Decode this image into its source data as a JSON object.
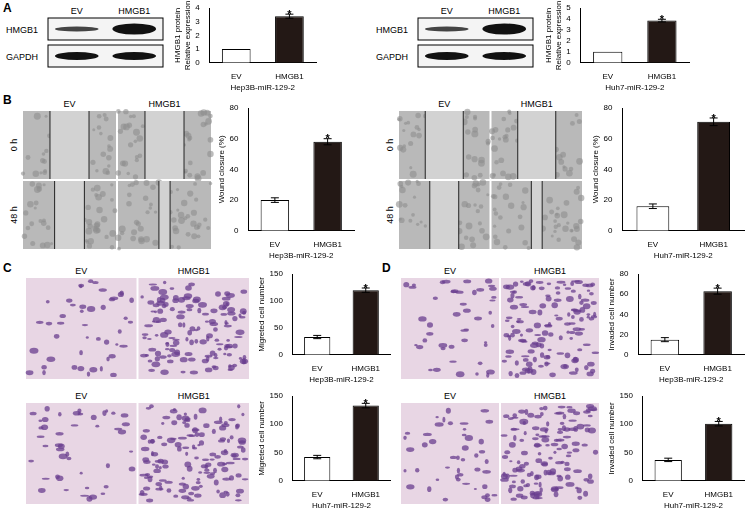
{
  "panels": [
    "A",
    "B",
    "C",
    "D"
  ],
  "blots": [
    {
      "columns": [
        "EV",
        "HMGB1"
      ],
      "rows": [
        "HMGB1",
        "GAPDH"
      ]
    },
    {
      "columns": [
        "EV",
        "HMGB1"
      ],
      "rows": [
        "HMGB1",
        "GAPDH"
      ]
    }
  ],
  "micrographs": [
    {
      "columns": [
        "EV",
        "HMGB1"
      ],
      "rows": [
        "0 h",
        "48 h"
      ]
    },
    {
      "columns": [
        "EV",
        "HMGB1"
      ],
      "rows": [
        "0 h",
        "48 h"
      ]
    },
    {
      "columns": [
        "EV",
        "HMGB1"
      ]
    },
    {
      "columns": [
        "EV",
        "HMGB1"
      ]
    },
    {
      "columns": [
        "EV",
        "HMGB1"
      ]
    },
    {
      "columns": [
        "EV",
        "HMGB1"
      ]
    }
  ],
  "chart_data": [
    {
      "type": "bar",
      "categories": [
        "EV",
        "HMGB1"
      ],
      "values": [
        1,
        3.4
      ],
      "errors": [
        0,
        0.15
      ],
      "colors": [
        "#ffffff",
        "#231815"
      ],
      "ylim": [
        0,
        4
      ],
      "yticks": [
        0,
        1,
        2,
        3,
        4
      ],
      "ylabel": [
        "HMGB1 protein",
        "Relative expression"
      ],
      "xlabel": "Hep3B-miR-129-2",
      "annotations": [
        {
          "category": "HMGB1",
          "text": "*"
        }
      ],
      "grid": false
    },
    {
      "type": "bar",
      "categories": [
        "EV",
        "HMGB1"
      ],
      "values": [
        1,
        3.85
      ],
      "errors": [
        0,
        0.12
      ],
      "colors": [
        "#ffffff",
        "#231815"
      ],
      "ylim": [
        0,
        5
      ],
      "yticks": [
        0,
        1,
        2,
        3,
        4,
        5
      ],
      "ylabel": [
        "HMGB1 protein",
        "Relative expression"
      ],
      "xlabel": "Huh7-miR-129-2",
      "annotations": [
        {
          "category": "HMGB1",
          "text": "*"
        }
      ],
      "grid": false
    },
    {
      "type": "bar",
      "categories": [
        "EV",
        "HMGB1"
      ],
      "values": [
        20,
        58
      ],
      "errors": [
        1.5,
        2
      ],
      "colors": [
        "#ffffff",
        "#231815"
      ],
      "ylim": [
        0,
        80
      ],
      "yticks": [
        0,
        20,
        40,
        60,
        80
      ],
      "ylabel": "Wound closure (%)",
      "xlabel": "Hep3B-miR-129-2",
      "annotations": [
        {
          "category": "HMGB1",
          "text": "*"
        }
      ],
      "grid": false
    },
    {
      "type": "bar",
      "categories": [
        "EV",
        "HMGB1"
      ],
      "values": [
        16,
        71
      ],
      "errors": [
        1.5,
        2.5
      ],
      "colors": [
        "#ffffff",
        "#231815"
      ],
      "ylim": [
        0,
        80
      ],
      "yticks": [
        0,
        20,
        40,
        60,
        80
      ],
      "ylabel": "Wound closure (%)",
      "xlabel": "Huh7-miR-129-2",
      "annotations": [
        {
          "category": "HMGB1",
          "text": "*"
        }
      ],
      "grid": false
    },
    {
      "type": "bar",
      "categories": [
        "EV",
        "HMGB1"
      ],
      "values": [
        33,
        120
      ],
      "errors": [
        3,
        4
      ],
      "colors": [
        "#ffffff",
        "#231815"
      ],
      "ylim": [
        0,
        150
      ],
      "yticks": [
        0,
        50,
        100,
        150
      ],
      "ylabel": "Migreted cell number",
      "xlabel": "Hep3B-miR-129-2",
      "annotations": [
        {
          "category": "HMGB1",
          "text": "*"
        }
      ],
      "grid": false
    },
    {
      "type": "bar",
      "categories": [
        "EV",
        "HMGB1"
      ],
      "values": [
        42,
        133
      ],
      "errors": [
        3,
        4
      ],
      "colors": [
        "#ffffff",
        "#231815"
      ],
      "ylim": [
        0,
        150
      ],
      "yticks": [
        0,
        50,
        100,
        150
      ],
      "ylabel": "Migreted cell number",
      "xlabel": "Huh7-miR-129-2",
      "annotations": [
        {
          "category": "HMGB1",
          "text": "*"
        }
      ],
      "grid": false
    },
    {
      "type": "bar",
      "categories": [
        "EV",
        "HMGB1"
      ],
      "values": [
        15,
        63
      ],
      "errors": [
        2,
        3
      ],
      "colors": [
        "#ffffff",
        "#231815"
      ],
      "ylim": [
        0,
        80
      ],
      "yticks": [
        0,
        20,
        40,
        60,
        80
      ],
      "ylabel": "Invaded cell number",
      "xlabel": "Hep3B-miR-129-2",
      "annotations": [
        {
          "category": "HMGB1",
          "text": "*"
        }
      ],
      "grid": false
    },
    {
      "type": "bar",
      "categories": [
        "EV",
        "HMGB1"
      ],
      "values": [
        37,
        101
      ],
      "errors": [
        3,
        4
      ],
      "colors": [
        "#ffffff",
        "#231815"
      ],
      "ylim": [
        0,
        150
      ],
      "yticks": [
        0,
        50,
        100,
        150
      ],
      "ylabel": "Invaded cell number",
      "xlabel": "Huh7-miR-129-2",
      "annotations": [
        {
          "category": "HMGB1",
          "text": "*"
        }
      ],
      "grid": false
    }
  ]
}
